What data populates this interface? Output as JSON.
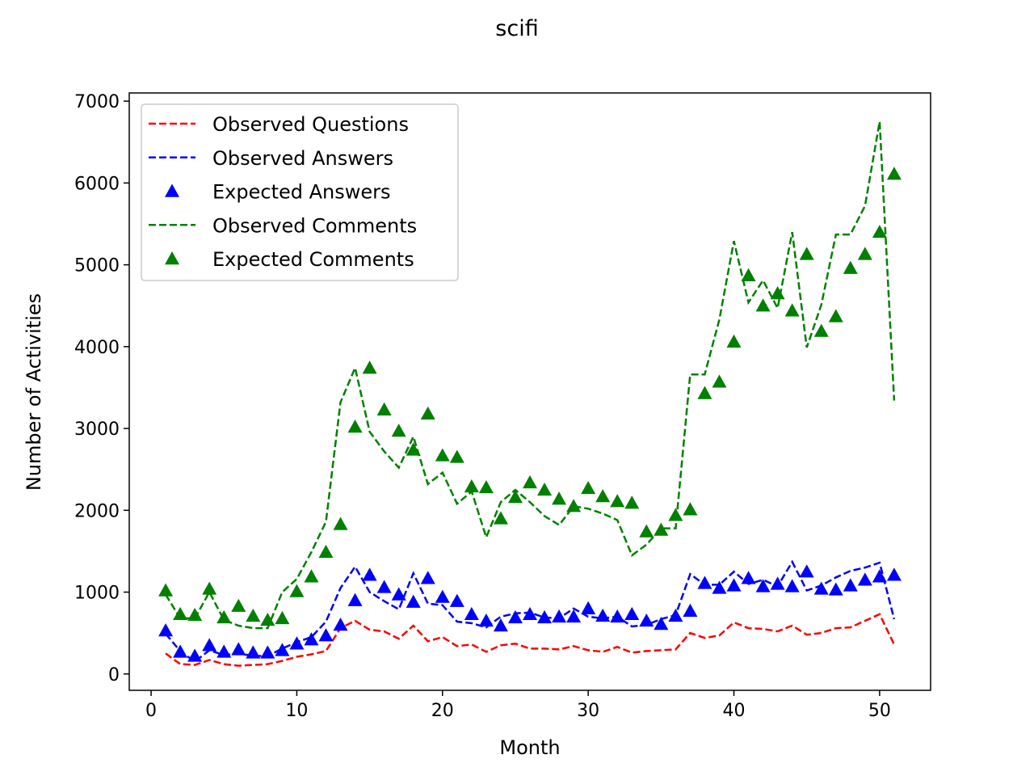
{
  "chart_data": {
    "type": "line",
    "title": "scifi",
    "xlabel": "Month",
    "ylabel": "Number of Activities",
    "xlim": [
      -1.5,
      53.5
    ],
    "ylim": [
      -200,
      7100
    ],
    "xticks": [
      0,
      10,
      20,
      30,
      40,
      50
    ],
    "yticks": [
      0,
      1000,
      2000,
      3000,
      4000,
      5000,
      6000,
      7000
    ],
    "grid": false,
    "legend_position": "top-left",
    "x": [
      1,
      2,
      3,
      4,
      5,
      6,
      7,
      8,
      9,
      10,
      11,
      12,
      13,
      14,
      15,
      16,
      17,
      18,
      19,
      20,
      21,
      22,
      23,
      24,
      25,
      26,
      27,
      28,
      29,
      30,
      31,
      32,
      33,
      34,
      35,
      36,
      37,
      38,
      39,
      40,
      41,
      42,
      43,
      44,
      45,
      46,
      47,
      48,
      49,
      50,
      51
    ],
    "series": [
      {
        "name": "Observed Questions",
        "style": "dashed",
        "color": "#ff0000",
        "values": [
          250,
          120,
          110,
          170,
          120,
          100,
          110,
          120,
          160,
          210,
          240,
          280,
          560,
          650,
          540,
          520,
          430,
          590,
          400,
          450,
          340,
          360,
          270,
          350,
          370,
          310,
          310,
          300,
          340,
          290,
          270,
          330,
          260,
          280,
          290,
          300,
          500,
          440,
          470,
          630,
          560,
          550,
          520,
          590,
          480,
          500,
          560,
          570,
          650,
          730,
          360
        ]
      },
      {
        "name": "Observed Answers",
        "style": "dashed",
        "color": "#0000ff",
        "values": [
          490,
          280,
          150,
          290,
          230,
          250,
          220,
          220,
          310,
          390,
          450,
          640,
          1050,
          1310,
          1000,
          890,
          790,
          1230,
          860,
          840,
          640,
          620,
          570,
          700,
          740,
          750,
          690,
          680,
          800,
          700,
          680,
          700,
          580,
          600,
          670,
          720,
          1220,
          1090,
          1090,
          1250,
          1100,
          1150,
          1070,
          1370,
          1020,
          1080,
          1180,
          1260,
          1300,
          1360,
          670
        ]
      },
      {
        "name": "Expected Answers",
        "style": "marker",
        "marker": "triangle",
        "color": "#0000ff",
        "values": [
          530,
          270,
          220,
          350,
          270,
          300,
          260,
          260,
          290,
          370,
          420,
          470,
          600,
          900,
          1210,
          1060,
          970,
          880,
          1170,
          940,
          890,
          730,
          650,
          590,
          690,
          730,
          690,
          700,
          700,
          800,
          710,
          700,
          730,
          650,
          610,
          710,
          770,
          1110,
          1050,
          1080,
          1170,
          1070,
          1100,
          1070,
          1250,
          1040,
          1030,
          1080,
          1150,
          1190,
          1210
        ]
      },
      {
        "name": "Observed Comments",
        "style": "dashed",
        "color": "#008000",
        "values": [
          970,
          680,
          680,
          1000,
          660,
          590,
          560,
          560,
          1000,
          1160,
          1490,
          1860,
          3320,
          3740,
          2960,
          2720,
          2520,
          2900,
          2320,
          2460,
          2080,
          2230,
          1670,
          2100,
          2250,
          2100,
          1930,
          1820,
          2050,
          2020,
          1960,
          1880,
          1450,
          1580,
          1780,
          1780,
          3660,
          3660,
          4330,
          5290,
          4540,
          4810,
          4470,
          5400,
          3990,
          4510,
          5370,
          5370,
          5720,
          6750,
          3340
        ]
      },
      {
        "name": "Expected Comments",
        "style": "marker",
        "marker": "triangle",
        "color": "#008000",
        "values": [
          1020,
          730,
          720,
          1040,
          690,
          830,
          710,
          660,
          680,
          1010,
          1190,
          1490,
          1830,
          3020,
          3740,
          3230,
          2970,
          2740,
          3180,
          2670,
          2650,
          2290,
          2280,
          1900,
          2160,
          2340,
          2250,
          2140,
          2050,
          2270,
          2170,
          2110,
          2090,
          1740,
          1760,
          1940,
          2010,
          3430,
          3570,
          4060,
          4870,
          4500,
          4650,
          4440,
          5130,
          4190,
          4370,
          4960,
          5130,
          5400,
          6110
        ]
      }
    ]
  }
}
